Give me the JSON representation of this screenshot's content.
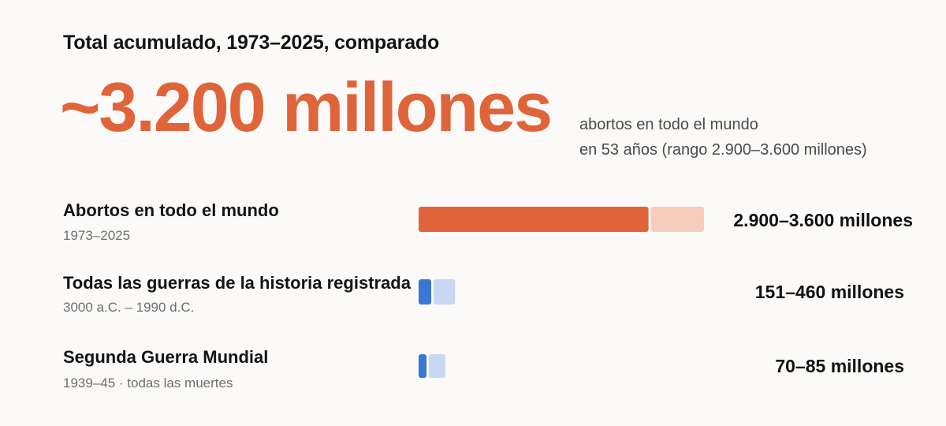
{
  "header": {
    "subtitle": "Total acumulado, 1973–2025, comparado",
    "big_number": "~3.200 millones",
    "caption_line1": "abortos en todo el mundo",
    "caption_line2": "en 53 años (rango 2.900–3.600 millones)"
  },
  "colors": {
    "accent": "#e0643a",
    "accent_light": "#f6cdbd",
    "blue": "#3a78d4",
    "blue_light": "#c7d8f2"
  },
  "chart_data": {
    "type": "bar",
    "orientation": "horizontal",
    "unit": "millones",
    "xlim": [
      0,
      3600
    ],
    "categories": [
      "Abortos en todo el mundo",
      "Todas las guerras de la historia registrada",
      "Segunda Guerra Mundial"
    ],
    "sublabels": [
      "1973–2025",
      "3000 a.C. – 1990 d.C.",
      "1939–45 · todas las muertes"
    ],
    "ranges": [
      {
        "low": 2900,
        "high": 3600
      },
      {
        "low": 151,
        "high": 460
      },
      {
        "low": 70,
        "high": 85
      }
    ],
    "value_labels": [
      "2.900–3.600 millones",
      "151–460 millones",
      "70–85 millones"
    ]
  }
}
